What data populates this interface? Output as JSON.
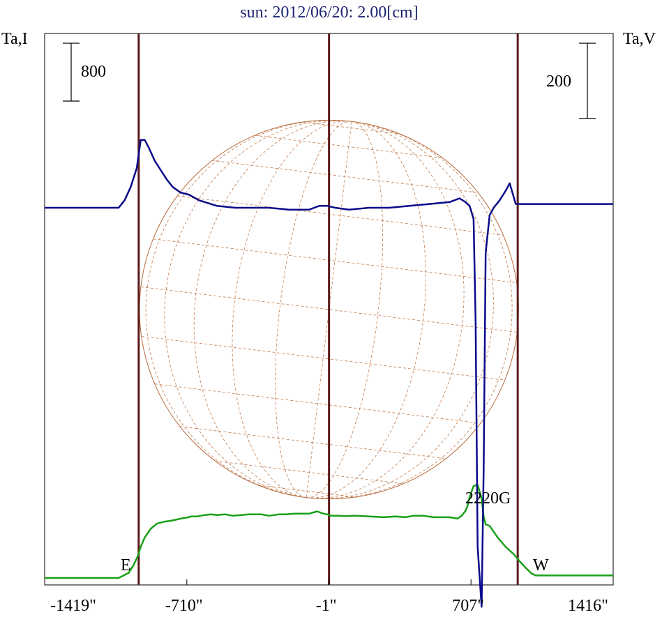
{
  "chart_data": {
    "type": "line",
    "title": "sun: 2012/06/20: 2.00[cm]",
    "ylabel_left": "Ta,I",
    "ylabel_right": "Ta,V",
    "xlim": [
      -1419,
      1416
    ],
    "x_ticks": [
      {
        "value": -1419,
        "label": "-1419\""
      },
      {
        "value": -710,
        "label": "-710\""
      },
      {
        "value": -1,
        "label": "-1\""
      },
      {
        "value": 707,
        "label": "707\""
      },
      {
        "value": 1416,
        "label": "1416\""
      }
    ],
    "scale_bars": {
      "left": "800",
      "right": "200"
    },
    "limb_markers": [
      -950,
      -1,
      940
    ],
    "limb_labels": {
      "east": "E",
      "west": "W"
    },
    "annotation": "2220G",
    "disk_center_x": -1,
    "disk_radius": 945,
    "series": [
      {
        "color": "#1aa01a",
        "x": [
          -1419,
          -1050,
          -1000,
          -975,
          -955,
          -940,
          -920,
          -890,
          -860,
          -820,
          -790,
          -740,
          -700,
          -690,
          -660,
          -620,
          -590,
          -560,
          -520,
          -480,
          -440,
          -400,
          -340,
          -300,
          -250,
          -220,
          -170,
          -100,
          -60,
          -30,
          -10,
          10,
          40,
          80,
          130,
          200,
          270,
          330,
          380,
          420,
          470,
          520,
          600,
          640,
          660,
          680,
          690,
          700,
          720,
          740,
          760,
          770,
          780,
          800,
          820,
          840,
          880,
          920,
          950,
          980,
          1010,
          1030,
          1060,
          1100,
          1416
        ],
        "values": [
          0,
          0,
          70,
          180,
          300,
          430,
          560,
          680,
          750,
          780,
          790,
          820,
          840,
          850,
          850,
          870,
          880,
          870,
          880,
          860,
          870,
          880,
          880,
          860,
          880,
          880,
          890,
          890,
          920,
          890,
          880,
          860,
          860,
          855,
          860,
          850,
          840,
          850,
          840,
          860,
          860,
          840,
          840,
          820,
          860,
          930,
          1000,
          1120,
          1270,
          1290,
          1100,
          850,
          740,
          720,
          640,
          560,
          430,
          330,
          230,
          140,
          60,
          35,
          35,
          35,
          35
        ]
      },
      {
        "color": "#0a0a8a",
        "x": [
          -1419,
          -1050,
          -1020,
          -990,
          -960,
          -940,
          -920,
          -900,
          -870,
          -840,
          -810,
          -780,
          -740,
          -700,
          -650,
          -560,
          -470,
          -400,
          -300,
          -200,
          -100,
          -50,
          -10,
          30,
          100,
          200,
          300,
          400,
          500,
          600,
          650,
          680,
          700,
          720,
          730,
          740,
          760,
          770,
          780,
          800,
          820,
          850,
          880,
          900,
          930,
          1416
        ],
        "values": [
          0,
          0,
          20,
          55,
          105,
          180,
          180,
          160,
          125,
          100,
          75,
          55,
          40,
          35,
          20,
          5,
          0,
          0,
          0,
          -5,
          -5,
          5,
          5,
          0,
          -5,
          0,
          0,
          5,
          10,
          15,
          25,
          15,
          5,
          -30,
          -300,
          -900,
          -1060,
          -700,
          -120,
          -20,
          0,
          20,
          45,
          65,
          10,
          10
        ]
      }
    ]
  }
}
